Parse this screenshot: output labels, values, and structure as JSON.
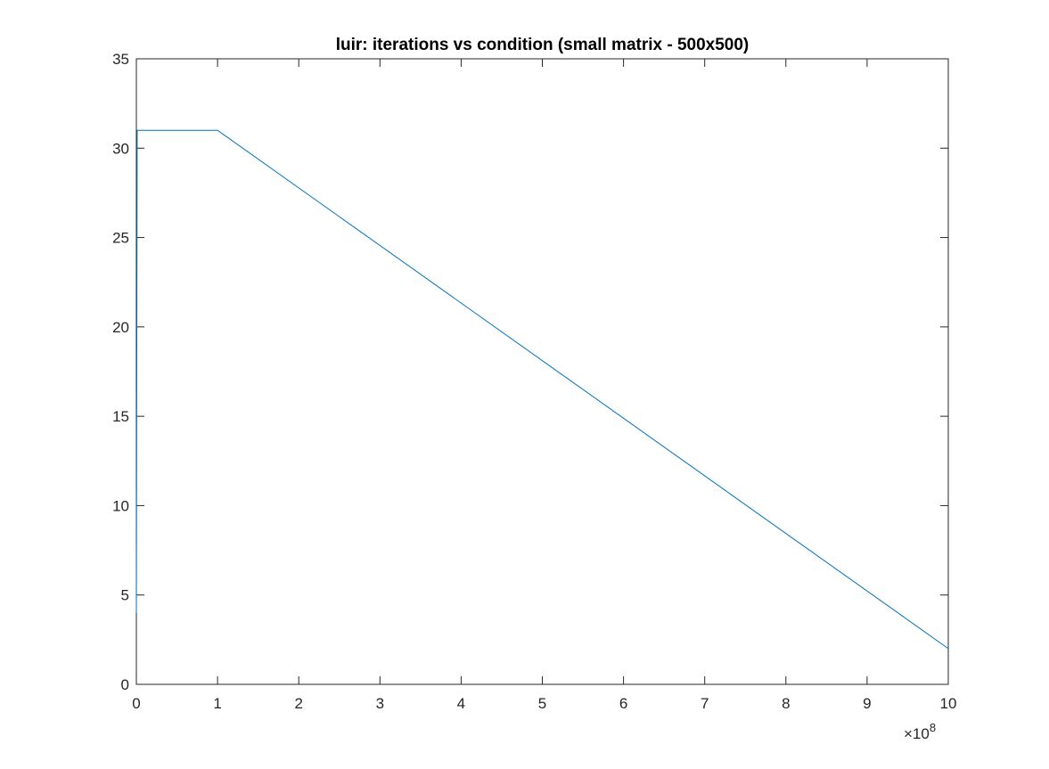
{
  "chart_data": {
    "type": "line",
    "title": "luir: iterations vs condition (small matrix - 500x500)",
    "xlabel": "",
    "ylabel": "",
    "xlim": [
      0,
      10
    ],
    "ylim": [
      0,
      35
    ],
    "x_ticks": [
      "0",
      "1",
      "2",
      "3",
      "4",
      "5",
      "6",
      "7",
      "8",
      "9",
      "10"
    ],
    "y_ticks": [
      "0",
      "5",
      "10",
      "15",
      "20",
      "25",
      "30",
      "35"
    ],
    "x_exponent": {
      "prefix": "×10",
      "power": "8"
    },
    "grid": false,
    "legend": "none",
    "series": [
      {
        "color": "#0072BD",
        "x": [
          0,
          0,
          0.01,
          1,
          10
        ],
        "y": [
          4,
          4,
          31,
          31,
          2
        ]
      }
    ]
  }
}
